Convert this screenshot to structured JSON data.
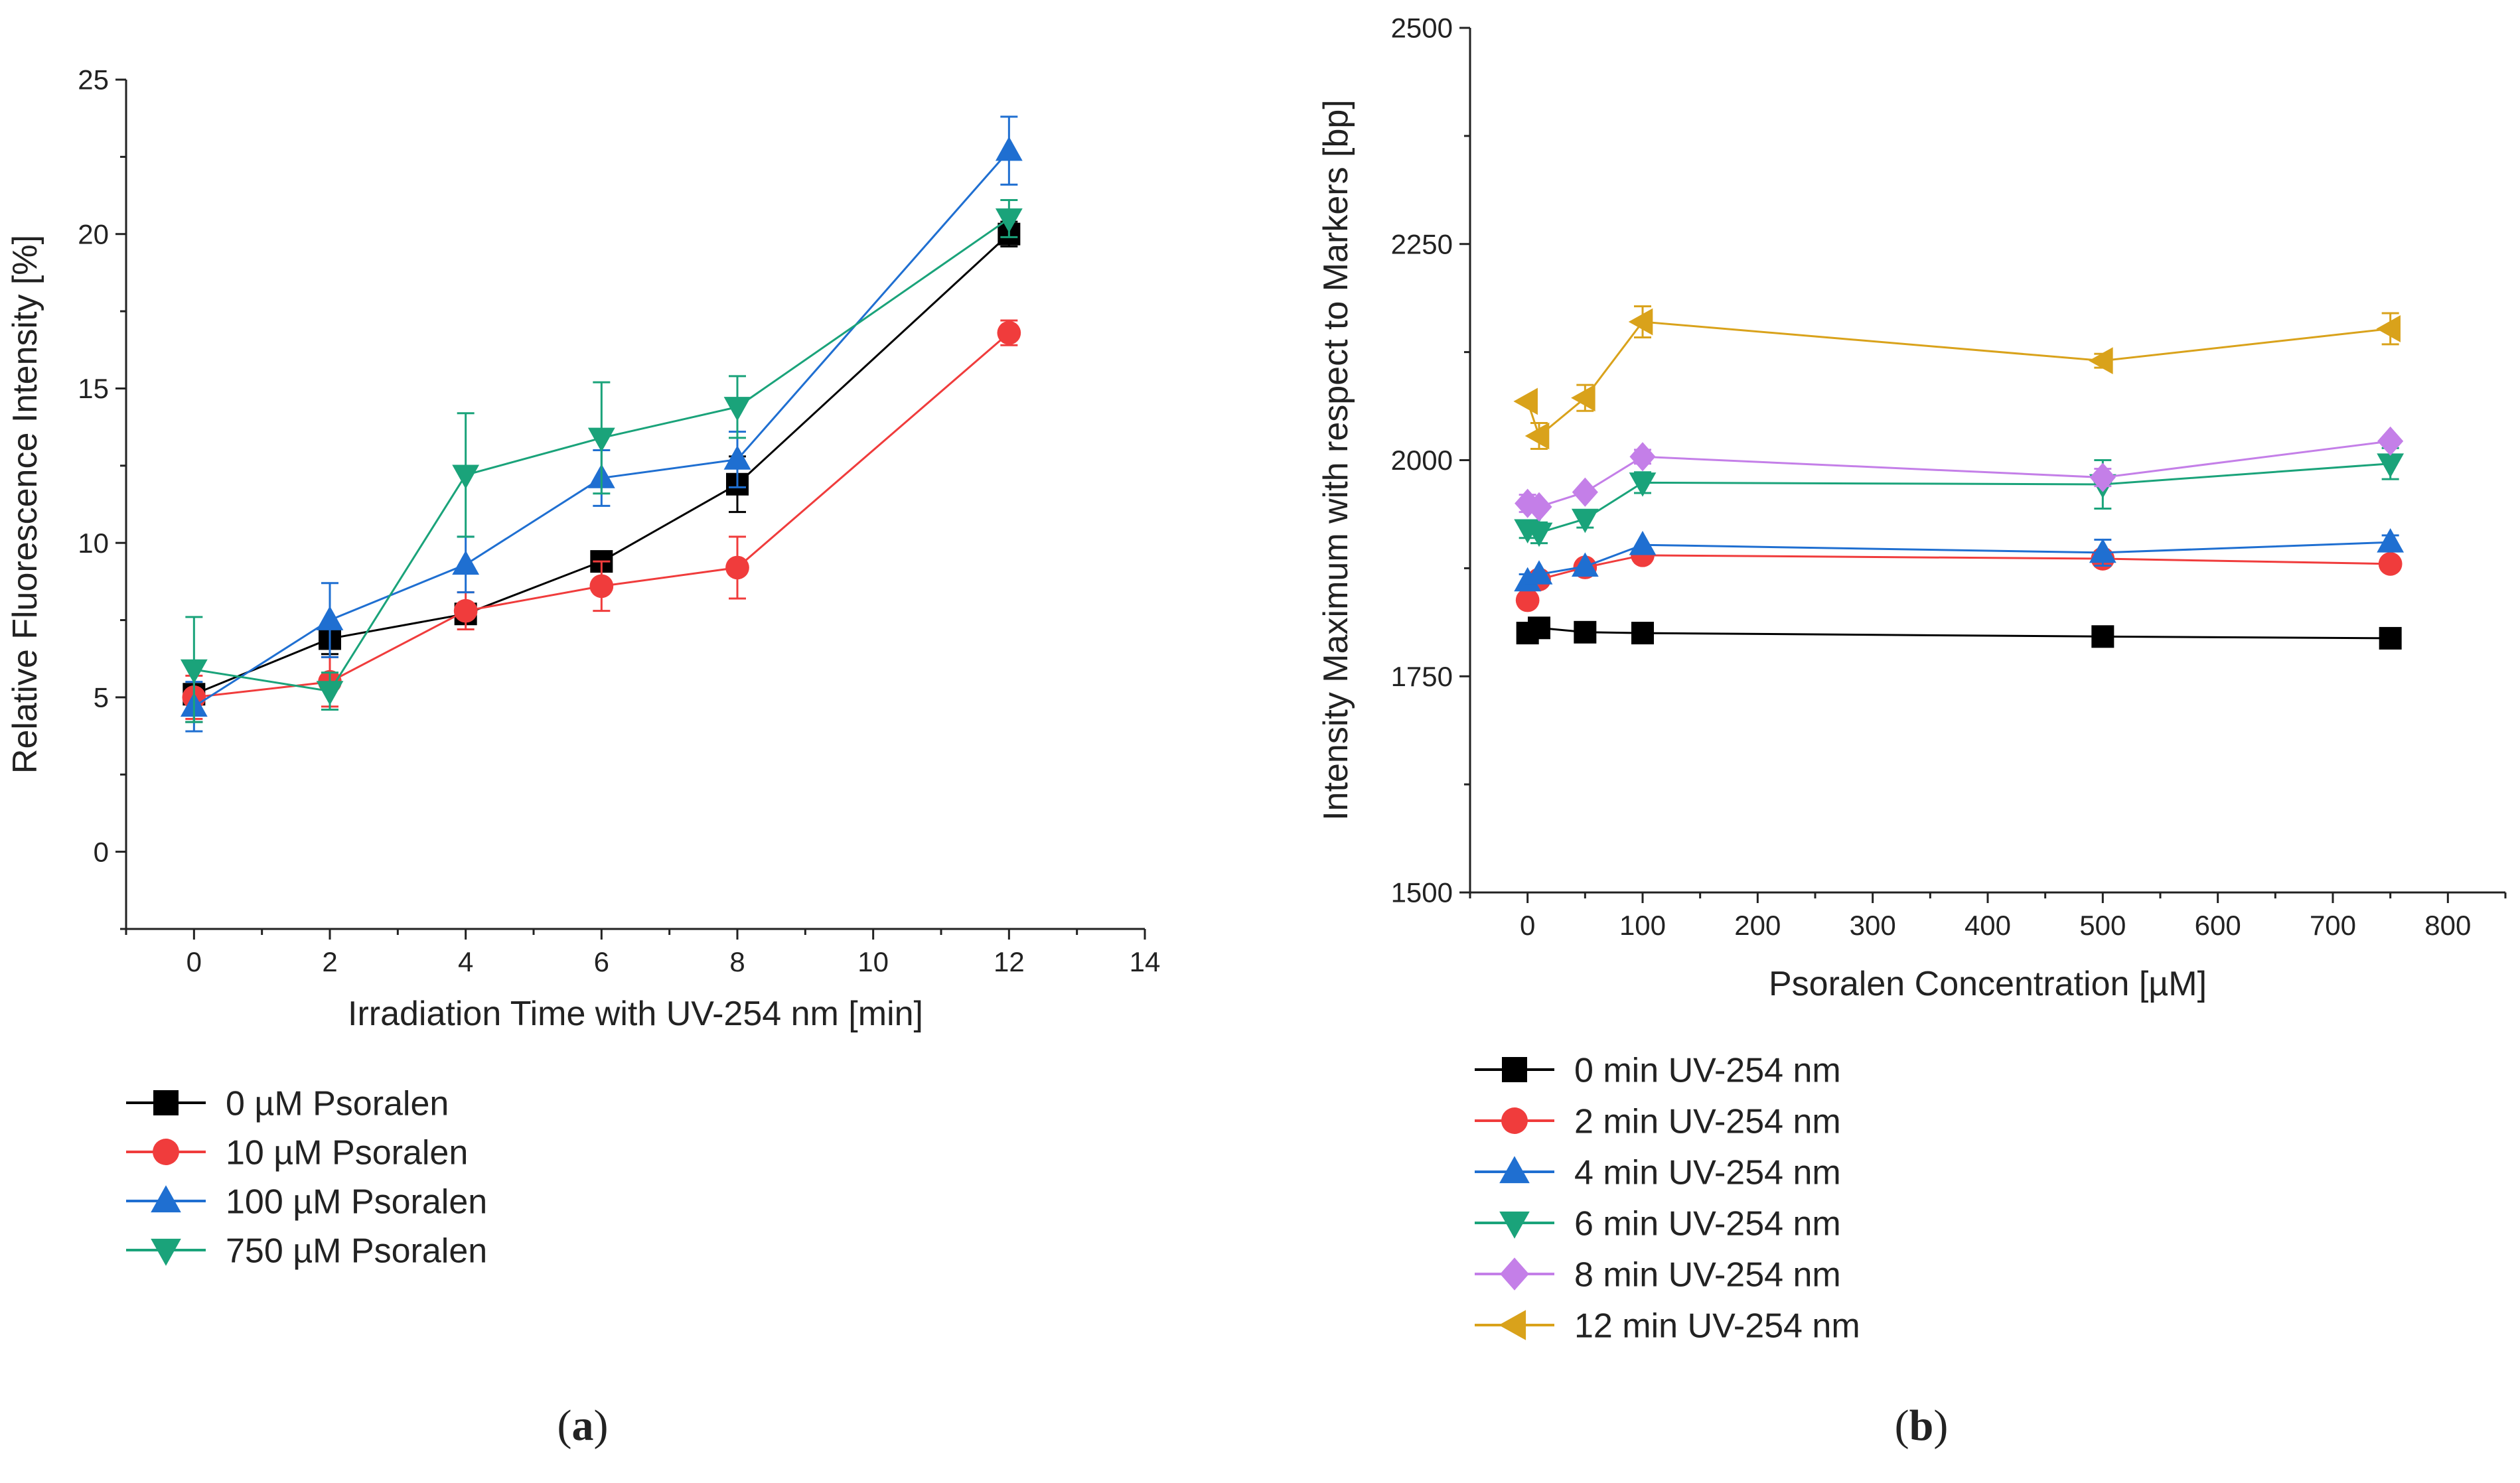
{
  "chart_data": [
    {
      "type": "line",
      "panel_label": "(a)",
      "xlabel": "Irradiation Time with UV-254 nm [min]",
      "ylabel": "Relative Fluorescence Intensity [%]",
      "xlim": [
        -1,
        14
      ],
      "ylim": [
        -2.5,
        25
      ],
      "xticks": [
        0,
        2,
        4,
        6,
        8,
        10,
        12,
        14
      ],
      "yticks": [
        0,
        5,
        10,
        15,
        20,
        25
      ],
      "legend_position": "below",
      "series": [
        {
          "name": "0 µM Psoralen",
          "color": "#000000",
          "marker": "square",
          "x": [
            0,
            2,
            4,
            6,
            8,
            12
          ],
          "y": [
            5.1,
            6.9,
            7.7,
            9.4,
            11.9,
            20.0
          ],
          "err": [
            0.9,
            0.5,
            0.3,
            0.2,
            0.9,
            0.4
          ]
        },
        {
          "name": "10 µM Psoralen",
          "color": "#f03c3c",
          "marker": "circle",
          "x": [
            0,
            2,
            4,
            6,
            8,
            12
          ],
          "y": [
            5.0,
            5.5,
            7.8,
            8.6,
            9.2,
            16.8
          ],
          "err": [
            0.7,
            0.8,
            0.6,
            0.8,
            1.0,
            0.4
          ]
        },
        {
          "name": "100 µM Psoralen",
          "color": "#1f6fd1",
          "marker": "triangle-up",
          "x": [
            0,
            2,
            4,
            6,
            8,
            12
          ],
          "y": [
            4.7,
            7.5,
            9.3,
            12.1,
            12.7,
            22.7
          ],
          "err": [
            0.8,
            1.2,
            0.9,
            0.9,
            0.9,
            1.1
          ]
        },
        {
          "name": "750 µM Psoralen",
          "color": "#1aa37a",
          "marker": "triangle-down",
          "x": [
            0,
            2,
            4,
            6,
            8,
            12
          ],
          "y": [
            5.9,
            5.2,
            12.2,
            13.4,
            14.4,
            20.5
          ],
          "err": [
            1.7,
            0.6,
            2.0,
            1.8,
            1.0,
            0.6
          ]
        }
      ]
    },
    {
      "type": "line",
      "panel_label": "(b)",
      "xlabel": "Psoralen Concentration [µM]",
      "ylabel": "Intensity Maximum with respect to Markers [bp]",
      "xlim": [
        -50,
        850
      ],
      "ylim": [
        1500,
        2500
      ],
      "xticks": [
        0,
        100,
        200,
        300,
        400,
        500,
        600,
        700,
        800
      ],
      "yticks": [
        1500,
        1750,
        2000,
        2250,
        2500
      ],
      "legend_position": "below",
      "series": [
        {
          "name": "0 min UV-254 nm",
          "color": "#000000",
          "marker": "square",
          "x": [
            0,
            10,
            50,
            100,
            500,
            750
          ],
          "y": [
            1800,
            1806,
            1801,
            1800,
            1796,
            1794
          ],
          "err": [
            0,
            0,
            0,
            0,
            0,
            0
          ]
        },
        {
          "name": "2 min UV-254 nm",
          "color": "#f03c3c",
          "marker": "circle",
          "x": [
            0,
            10,
            50,
            100,
            500,
            750
          ],
          "y": [
            1838,
            1862,
            1876,
            1890,
            1886,
            1880
          ],
          "err": [
            0,
            0,
            0,
            0,
            0,
            0
          ]
        },
        {
          "name": "4 min UV-254 nm",
          "color": "#1f6fd1",
          "marker": "triangle-up",
          "x": [
            0,
            10,
            50,
            100,
            500,
            750
          ],
          "y": [
            1860,
            1868,
            1877,
            1902,
            1893,
            1905
          ],
          "err": [
            8,
            0,
            0,
            0,
            15,
            8
          ]
        },
        {
          "name": "6 min UV-254 nm",
          "color": "#1aa37a",
          "marker": "triangle-down",
          "x": [
            0,
            10,
            50,
            100,
            500,
            750
          ],
          "y": [
            1920,
            1916,
            1932,
            1974,
            1972,
            1996
          ],
          "err": [
            10,
            12,
            10,
            12,
            28,
            18
          ]
        },
        {
          "name": "8 min UV-254 nm",
          "color": "#c47fe8",
          "marker": "diamond",
          "x": [
            0,
            10,
            50,
            100,
            500,
            750
          ],
          "y": [
            1950,
            1946,
            1963,
            2004,
            1980,
            2022
          ],
          "err": [
            10,
            0,
            0,
            8,
            10,
            0
          ]
        },
        {
          "name": "12 min UV-254 nm",
          "color": "#d9a21b",
          "marker": "triangle-left",
          "x": [
            0,
            10,
            50,
            100,
            500,
            750
          ],
          "y": [
            2068,
            2028,
            2072,
            2160,
            2115,
            2152
          ],
          "err": [
            0,
            15,
            15,
            18,
            8,
            18
          ]
        }
      ]
    }
  ]
}
